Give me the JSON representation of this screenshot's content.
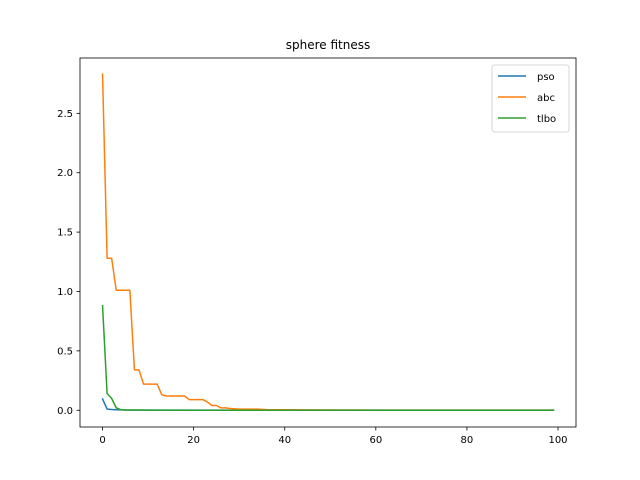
{
  "chart_data": {
    "type": "line",
    "title": "sphere fitness",
    "xlabel": "",
    "ylabel": "",
    "xlim": [
      -4.95,
      103.95
    ],
    "ylim": [
      -0.141,
      2.966
    ],
    "xticks": [
      0,
      20,
      40,
      60,
      80,
      100
    ],
    "xtick_labels": [
      "0",
      "20",
      "40",
      "60",
      "80",
      "100"
    ],
    "yticks": [
      0.0,
      0.5,
      1.0,
      1.5,
      2.0,
      2.5
    ],
    "ytick_labels": [
      "0.0",
      "0.5",
      "1.0",
      "1.5",
      "2.0",
      "2.5"
    ],
    "grid": false,
    "legend_position": "top-right",
    "series": [
      {
        "name": "pso",
        "color": "#1f77b4",
        "x": [
          0,
          1,
          2,
          3,
          4,
          5,
          10,
          20,
          30,
          40,
          50,
          60,
          70,
          80,
          90,
          99
        ],
        "y": [
          0.095,
          0.01,
          0.006,
          0.004,
          0.003,
          0.002,
          0.001,
          0.001,
          0.001,
          0.001,
          0.001,
          0.001,
          0.001,
          0.001,
          0.001,
          0.001
        ]
      },
      {
        "name": "abc",
        "color": "#ff7f0e",
        "x": [
          0,
          1,
          2,
          3,
          4,
          5,
          6,
          7,
          8,
          9,
          10,
          11,
          12,
          13,
          14,
          15,
          16,
          17,
          18,
          19,
          20,
          21,
          22,
          23,
          24,
          25,
          26,
          27,
          28,
          30,
          32,
          34,
          36,
          40,
          50,
          60,
          70,
          80,
          90,
          99
        ],
        "y": [
          2.83,
          1.28,
          1.28,
          1.01,
          1.01,
          1.01,
          1.01,
          0.34,
          0.34,
          0.22,
          0.22,
          0.22,
          0.22,
          0.13,
          0.12,
          0.12,
          0.12,
          0.12,
          0.12,
          0.09,
          0.09,
          0.09,
          0.09,
          0.07,
          0.04,
          0.04,
          0.02,
          0.02,
          0.015,
          0.01,
          0.01,
          0.01,
          0.005,
          0.004,
          0.002,
          0.001,
          0.001,
          0.001,
          0.001,
          0.001
        ]
      },
      {
        "name": "tlbo",
        "color": "#2ca02c",
        "x": [
          0,
          1,
          2,
          3,
          4,
          5,
          10,
          20,
          30,
          40,
          50,
          60,
          70,
          80,
          90,
          99
        ],
        "y": [
          0.88,
          0.14,
          0.1,
          0.02,
          0.005,
          0.002,
          0.001,
          0.0005,
          0.0003,
          0.0002,
          0.0001,
          0.0001,
          0.0001,
          0.0001,
          0.0001,
          0.0001
        ]
      }
    ]
  }
}
